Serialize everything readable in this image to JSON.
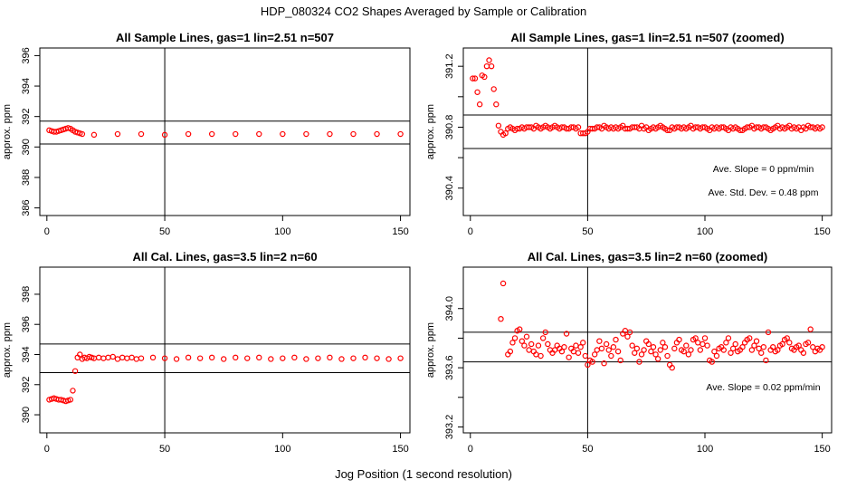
{
  "figure": {
    "title": "HDP_080324  CO2 Shapes Averaged by Sample or Calibration",
    "xlabel": "Jog Position (1 second resolution)"
  },
  "colors": {
    "points": "#ff0000",
    "axes": "#000000"
  },
  "chart_data": [
    {
      "type": "scatter",
      "title": "All Sample Lines, gas=1 lin=2.51 n=507",
      "xlabel": "",
      "ylabel": "approx. ppm",
      "xlim": [
        -3,
        154
      ],
      "ylim": [
        385.5,
        396.5
      ],
      "xticks": [
        0,
        50,
        100,
        150
      ],
      "yticks": [
        386,
        388,
        390,
        392,
        394,
        396
      ],
      "hlines": [
        390.2,
        391.7
      ],
      "vline": 50,
      "annotations": [],
      "series": [
        {
          "x": [
            1,
            2,
            3,
            4,
            5,
            6,
            7,
            8,
            9,
            10,
            11,
            12,
            13,
            14,
            15,
            20,
            30,
            40,
            50,
            60,
            70,
            80,
            90,
            100,
            110,
            120,
            130,
            140,
            150
          ],
          "y": [
            391.1,
            391.05,
            391.0,
            391.0,
            391.05,
            391.1,
            391.15,
            391.2,
            391.25,
            391.2,
            391.1,
            391.0,
            390.95,
            390.9,
            390.85,
            390.8,
            390.85,
            390.85,
            390.8,
            390.85,
            390.85,
            390.85,
            390.85,
            390.85,
            390.85,
            390.85,
            390.85,
            390.85,
            390.85
          ]
        }
      ]
    },
    {
      "type": "scatter",
      "title": "All Sample Lines, gas=1 lin=2.51 n=507 (zoomed)",
      "xlabel": "",
      "ylabel": "approx. ppm",
      "xlim": [
        -3,
        154
      ],
      "ylim": [
        390.22,
        391.32
      ],
      "xticks": [
        0,
        50,
        100,
        150
      ],
      "yticks": [
        390.4,
        390.6,
        390.8,
        391.0,
        391.2
      ],
      "ytick_labels": [
        "390.4",
        "",
        "390.8",
        "",
        "391.2"
      ],
      "hlines": [
        390.66,
        390.88
      ],
      "vline": 50,
      "annotations": [
        "Ave. Slope =  0  ppm/min",
        "Ave. Std. Dev. =  0.48  ppm"
      ],
      "series": [
        {
          "x": [
            1,
            2,
            3,
            4,
            5,
            6,
            7,
            8,
            9,
            10,
            11,
            12,
            13,
            14,
            15,
            16,
            17,
            18,
            19,
            20,
            21,
            22,
            23,
            24,
            25,
            26,
            27,
            28,
            29,
            30,
            31,
            32,
            33,
            34,
            35,
            36,
            37,
            38,
            39,
            40,
            41,
            42,
            43,
            44,
            45,
            46,
            47,
            48,
            49,
            50,
            51,
            52,
            53,
            54,
            55,
            56,
            57,
            58,
            59,
            60,
            61,
            62,
            63,
            64,
            65,
            66,
            67,
            68,
            69,
            70,
            71,
            72,
            73,
            74,
            75,
            76,
            77,
            78,
            79,
            80,
            81,
            82,
            83,
            84,
            85,
            86,
            87,
            88,
            89,
            90,
            91,
            92,
            93,
            94,
            95,
            96,
            97,
            98,
            99,
            100,
            101,
            102,
            103,
            104,
            105,
            106,
            107,
            108,
            109,
            110,
            111,
            112,
            113,
            114,
            115,
            116,
            117,
            118,
            119,
            120,
            121,
            122,
            123,
            124,
            125,
            126,
            127,
            128,
            129,
            130,
            131,
            132,
            133,
            134,
            135,
            136,
            137,
            138,
            139,
            140,
            141,
            142,
            143,
            144,
            145,
            146,
            147,
            148,
            149,
            150
          ],
          "y": [
            391.12,
            391.12,
            391.03,
            390.95,
            391.14,
            391.13,
            391.2,
            391.24,
            391.2,
            391.05,
            390.95,
            390.81,
            390.77,
            390.75,
            390.76,
            390.79,
            390.8,
            390.79,
            390.78,
            390.79,
            390.79,
            390.8,
            390.79,
            390.8,
            390.8,
            390.8,
            390.79,
            390.81,
            390.8,
            390.79,
            390.8,
            390.81,
            390.8,
            390.79,
            390.8,
            390.81,
            390.8,
            390.79,
            390.8,
            390.8,
            390.79,
            390.79,
            390.8,
            390.8,
            390.79,
            390.8,
            390.76,
            390.76,
            390.76,
            390.77,
            390.79,
            390.79,
            390.79,
            390.8,
            390.8,
            390.79,
            390.81,
            390.8,
            390.79,
            390.8,
            390.79,
            390.8,
            390.79,
            390.8,
            390.81,
            390.79,
            390.79,
            390.79,
            390.8,
            390.8,
            390.8,
            390.79,
            390.81,
            390.79,
            390.8,
            390.78,
            390.79,
            390.8,
            390.79,
            390.8,
            390.81,
            390.8,
            390.79,
            390.78,
            390.78,
            390.8,
            390.79,
            390.8,
            390.8,
            390.79,
            390.8,
            390.79,
            390.8,
            390.81,
            390.79,
            390.8,
            390.8,
            390.79,
            390.8,
            390.8,
            390.79,
            390.78,
            390.8,
            390.79,
            390.8,
            390.79,
            390.8,
            390.8,
            390.79,
            390.78,
            390.8,
            390.79,
            390.8,
            390.79,
            390.78,
            390.78,
            390.79,
            390.8,
            390.8,
            390.81,
            390.79,
            390.8,
            390.8,
            390.79,
            390.8,
            390.8,
            390.79,
            390.78,
            390.79,
            390.8,
            390.81,
            390.79,
            390.8,
            390.79,
            390.8,
            390.81,
            390.79,
            390.8,
            390.79,
            390.8,
            390.78,
            390.8,
            390.79,
            390.81,
            390.8,
            390.8,
            390.79,
            390.8,
            390.79,
            390.8
          ]
        }
      ]
    },
    {
      "type": "scatter",
      "title": "All Cal. Lines, gas=3.5 lin=2 n=60",
      "xlabel": "",
      "ylabel": "approx. ppm",
      "xlim": [
        -3,
        154
      ],
      "ylim": [
        388.8,
        399.8
      ],
      "xticks": [
        0,
        50,
        100,
        150
      ],
      "yticks": [
        390,
        392,
        394,
        396,
        398
      ],
      "hlines": [
        392.8,
        394.7
      ],
      "vline": 50,
      "annotations": [],
      "series": [
        {
          "x": [
            1,
            2,
            3,
            4,
            5,
            6,
            7,
            8,
            9,
            10,
            11,
            12,
            13,
            14,
            15,
            16,
            17,
            18,
            19,
            20,
            22,
            24,
            26,
            28,
            30,
            32,
            34,
            36,
            38,
            40,
            45,
            50,
            55,
            60,
            65,
            70,
            75,
            80,
            85,
            90,
            95,
            100,
            105,
            110,
            115,
            120,
            125,
            130,
            135,
            140,
            145,
            150
          ],
          "y": [
            391.0,
            391.05,
            391.1,
            391.05,
            391.0,
            391.0,
            390.95,
            390.9,
            390.95,
            391.0,
            391.6,
            392.9,
            393.8,
            394.0,
            393.7,
            393.8,
            393.75,
            393.85,
            393.8,
            393.75,
            393.8,
            393.75,
            393.8,
            393.85,
            393.7,
            393.8,
            393.75,
            393.8,
            393.7,
            393.75,
            393.8,
            393.75,
            393.7,
            393.8,
            393.75,
            393.8,
            393.7,
            393.8,
            393.75,
            393.8,
            393.7,
            393.75,
            393.8,
            393.7,
            393.75,
            393.8,
            393.7,
            393.75,
            393.8,
            393.75,
            393.7,
            393.75
          ]
        }
      ]
    },
    {
      "type": "scatter",
      "title": "All Cal. Lines, gas=3.5 lin=2 n=60 (zoomed)",
      "xlabel": "",
      "ylabel": "approx. ppm",
      "xlim": [
        -3,
        154
      ],
      "ylim": [
        393.16,
        394.28
      ],
      "xticks": [
        0,
        50,
        100,
        150
      ],
      "yticks": [
        393.2,
        393.4,
        393.6,
        393.8,
        394.0
      ],
      "ytick_labels": [
        "393.2",
        "",
        "393.6",
        "",
        "394.0"
      ],
      "hlines": [
        393.64,
        393.84
      ],
      "vline": 50,
      "annotations": [
        "Ave. Slope =  0.02  ppm/min"
      ],
      "series": [
        {
          "x": [
            13,
            14,
            16,
            17,
            18,
            19,
            20,
            21,
            22,
            23,
            24,
            25,
            26,
            27,
            28,
            29,
            30,
            31,
            32,
            33,
            34,
            35,
            36,
            37,
            38,
            39,
            40,
            41,
            42,
            43,
            44,
            45,
            46,
            47,
            48,
            49,
            50,
            51,
            52,
            53,
            54,
            55,
            56,
            57,
            58,
            59,
            60,
            61,
            62,
            63,
            64,
            65,
            66,
            67,
            68,
            69,
            70,
            71,
            72,
            73,
            74,
            75,
            76,
            77,
            78,
            79,
            80,
            81,
            82,
            83,
            84,
            85,
            86,
            87,
            88,
            89,
            90,
            91,
            92,
            93,
            94,
            95,
            96,
            97,
            98,
            99,
            100,
            101,
            102,
            103,
            104,
            105,
            106,
            107,
            108,
            109,
            110,
            111,
            112,
            113,
            114,
            115,
            116,
            117,
            118,
            119,
            120,
            121,
            122,
            123,
            124,
            125,
            126,
            127,
            128,
            129,
            130,
            131,
            132,
            133,
            134,
            135,
            136,
            137,
            138,
            139,
            140,
            141,
            142,
            143,
            144,
            145,
            146,
            147,
            148,
            149,
            150
          ],
          "y": [
            393.93,
            394.17,
            393.69,
            393.71,
            393.77,
            393.8,
            393.85,
            393.86,
            393.78,
            393.75,
            393.81,
            393.72,
            393.76,
            393.71,
            393.69,
            393.75,
            393.68,
            393.8,
            393.84,
            393.76,
            393.72,
            393.7,
            393.72,
            393.75,
            393.73,
            393.71,
            393.74,
            393.83,
            393.67,
            393.73,
            393.71,
            393.75,
            393.7,
            393.74,
            393.77,
            393.68,
            393.62,
            393.65,
            393.64,
            393.69,
            393.72,
            393.78,
            393.73,
            393.63,
            393.76,
            393.72,
            393.68,
            393.74,
            393.79,
            393.71,
            393.65,
            393.83,
            393.85,
            393.81,
            393.84,
            393.75,
            393.7,
            393.73,
            393.64,
            393.69,
            393.72,
            393.78,
            393.76,
            393.71,
            393.74,
            393.69,
            393.66,
            393.72,
            393.77,
            393.74,
            393.68,
            393.62,
            393.6,
            393.73,
            393.77,
            393.79,
            393.72,
            393.71,
            393.75,
            393.69,
            393.72,
            393.79,
            393.8,
            393.77,
            393.72,
            393.76,
            393.8,
            393.75,
            393.65,
            393.64,
            393.71,
            393.68,
            393.73,
            393.74,
            393.72,
            393.77,
            393.8,
            393.7,
            393.73,
            393.76,
            393.71,
            393.72,
            393.74,
            393.77,
            393.79,
            393.8,
            393.72,
            393.75,
            393.78,
            393.73,
            393.7,
            393.74,
            393.65,
            393.84,
            393.72,
            393.74,
            393.71,
            393.72,
            393.75,
            393.76,
            393.79,
            393.8,
            393.77,
            393.73,
            393.72,
            393.74,
            393.75,
            393.72,
            393.7,
            393.76,
            393.77,
            393.86,
            393.74,
            393.71,
            393.73,
            393.72,
            393.74
          ]
        }
      ]
    }
  ]
}
